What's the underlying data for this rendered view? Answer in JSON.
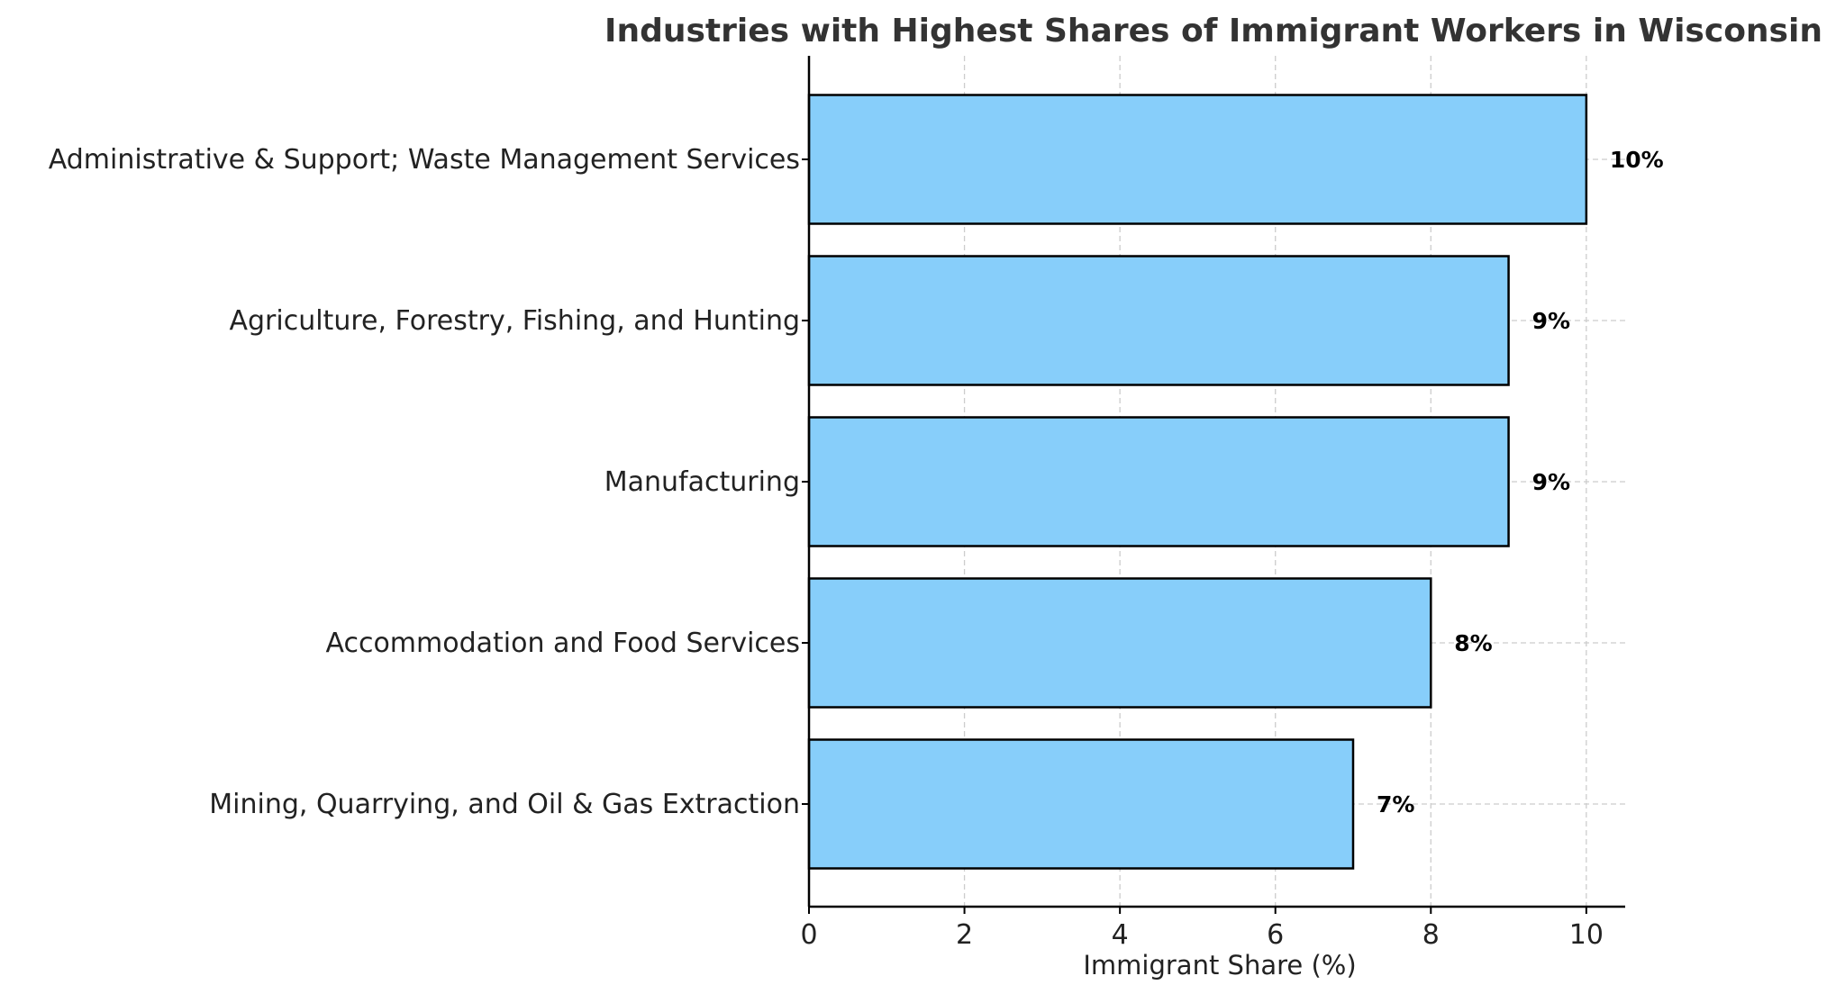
{
  "chart_data": {
    "type": "bar",
    "orientation": "horizontal",
    "title": "Industries with Highest Shares of Immigrant Workers in Wisconsin",
    "xlabel": "Immigrant Share (%)",
    "ylabel": "",
    "categories": [
      "Administrative & Support; Waste Management Services",
      "Agriculture, Forestry, Fishing, and Hunting",
      "Manufacturing",
      "Accommodation and Food Services",
      "Mining, Quarrying, and Oil & Gas Extraction"
    ],
    "values": [
      10,
      9,
      9,
      8,
      7
    ],
    "value_labels": [
      "10%",
      "9%",
      "9%",
      "8%",
      "7%"
    ],
    "xlim": [
      0,
      10.5
    ],
    "xticks": [
      0,
      2,
      4,
      6,
      8,
      10
    ],
    "xtick_labels": [
      "0",
      "2",
      "4",
      "6",
      "8",
      "10"
    ],
    "grid": true,
    "bar_color": "#87cefa",
    "bar_edge_color": "#000000"
  }
}
